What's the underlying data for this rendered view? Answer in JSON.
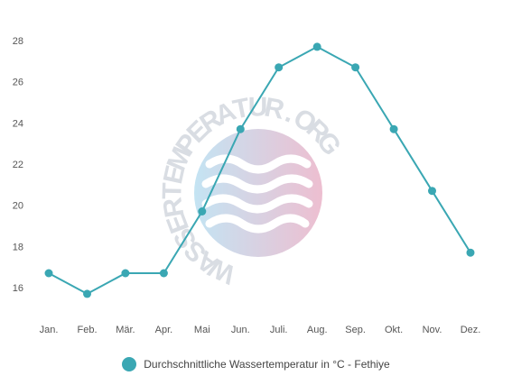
{
  "colors": {
    "series": "#3aa7b3",
    "text": "#555555",
    "watermark_text": "#d9dde3",
    "watermark_gradient_left": "#b9dff1",
    "watermark_gradient_right": "#eab3c8"
  },
  "watermark": {
    "text": "WASSERTEMPERATUR.ORG",
    "icon": "waves-icon"
  },
  "legend": {
    "placement": "bottom-center",
    "label": "Durchschnittliche Wassertemperatur in °C - Fethiye"
  },
  "chart_data": {
    "type": "line",
    "title": "",
    "xlabel": "",
    "ylabel": "",
    "grid": false,
    "categories": [
      "Jan.",
      "Feb.",
      "Mär.",
      "Apr.",
      "Mai",
      "Jun.",
      "Juli.",
      "Aug.",
      "Sep.",
      "Okt.",
      "Nov.",
      "Dez."
    ],
    "yticks": [
      16,
      18,
      20,
      22,
      24,
      26,
      28
    ],
    "ylim": [
      14.5,
      28.5
    ],
    "series": [
      {
        "name": "Durchschnittliche Wassertemperatur in °C - Fethiye",
        "values": [
          16.7,
          15.7,
          16.7,
          16.7,
          19.7,
          23.7,
          26.7,
          27.7,
          26.7,
          23.7,
          20.7,
          17.7
        ]
      }
    ]
  }
}
